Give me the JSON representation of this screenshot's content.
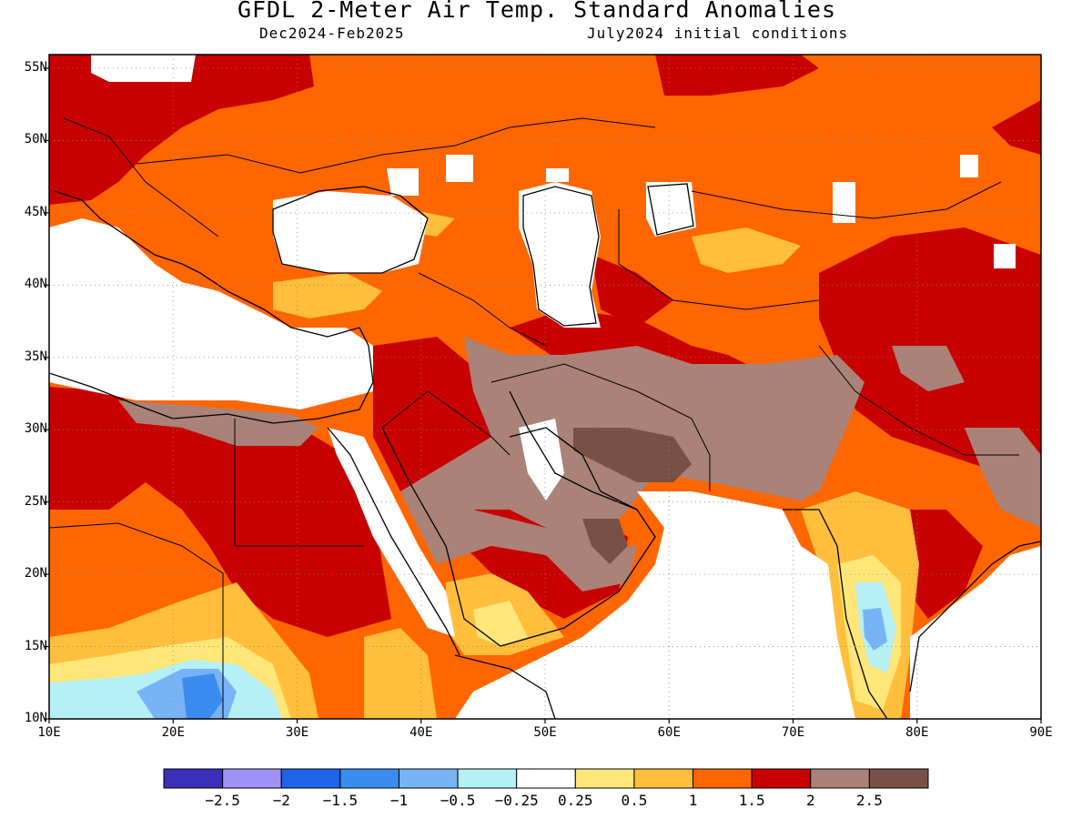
{
  "title": "GFDL 2-Meter Air Temp. Standard Anomalies",
  "subtitle_left": "Dec2024-Feb2025",
  "subtitle_right": "July2024 initial conditions",
  "lat_labels": [
    "55N",
    "50N",
    "45N",
    "40N",
    "35N",
    "30N",
    "25N",
    "20N",
    "15N",
    "10N"
  ],
  "lon_labels": [
    "10E",
    "20E",
    "30E",
    "40E",
    "50E",
    "60E",
    "70E",
    "80E",
    "90E"
  ],
  "colorbar": {
    "colors": [
      "#3a2eba",
      "#9f91f5",
      "#1f64e6",
      "#3c8cf0",
      "#78b4f5",
      "#b4f0f5",
      "#ffffff",
      "#ffe678",
      "#ffbe3c",
      "#ff6600",
      "#c80000",
      "#aa8278",
      "#785046"
    ],
    "labels": [
      "-2.5",
      "-2",
      "-1.5",
      "-1",
      "-0.5",
      "-0.25",
      "0.25",
      "0.5",
      "1",
      "1.5",
      "2",
      "2.5"
    ]
  },
  "map_colors": {
    "land_default": "#ff6600",
    "strong": "#c80000",
    "very_strong": "#aa8278",
    "extreme": "#785046",
    "mild": "#ffbe3c",
    "slight": "#ffe678",
    "cool_light": "#b4f0f5",
    "cool": "#78b4f5",
    "cooler": "#3c8cf0",
    "masked": "#ffffff"
  }
}
